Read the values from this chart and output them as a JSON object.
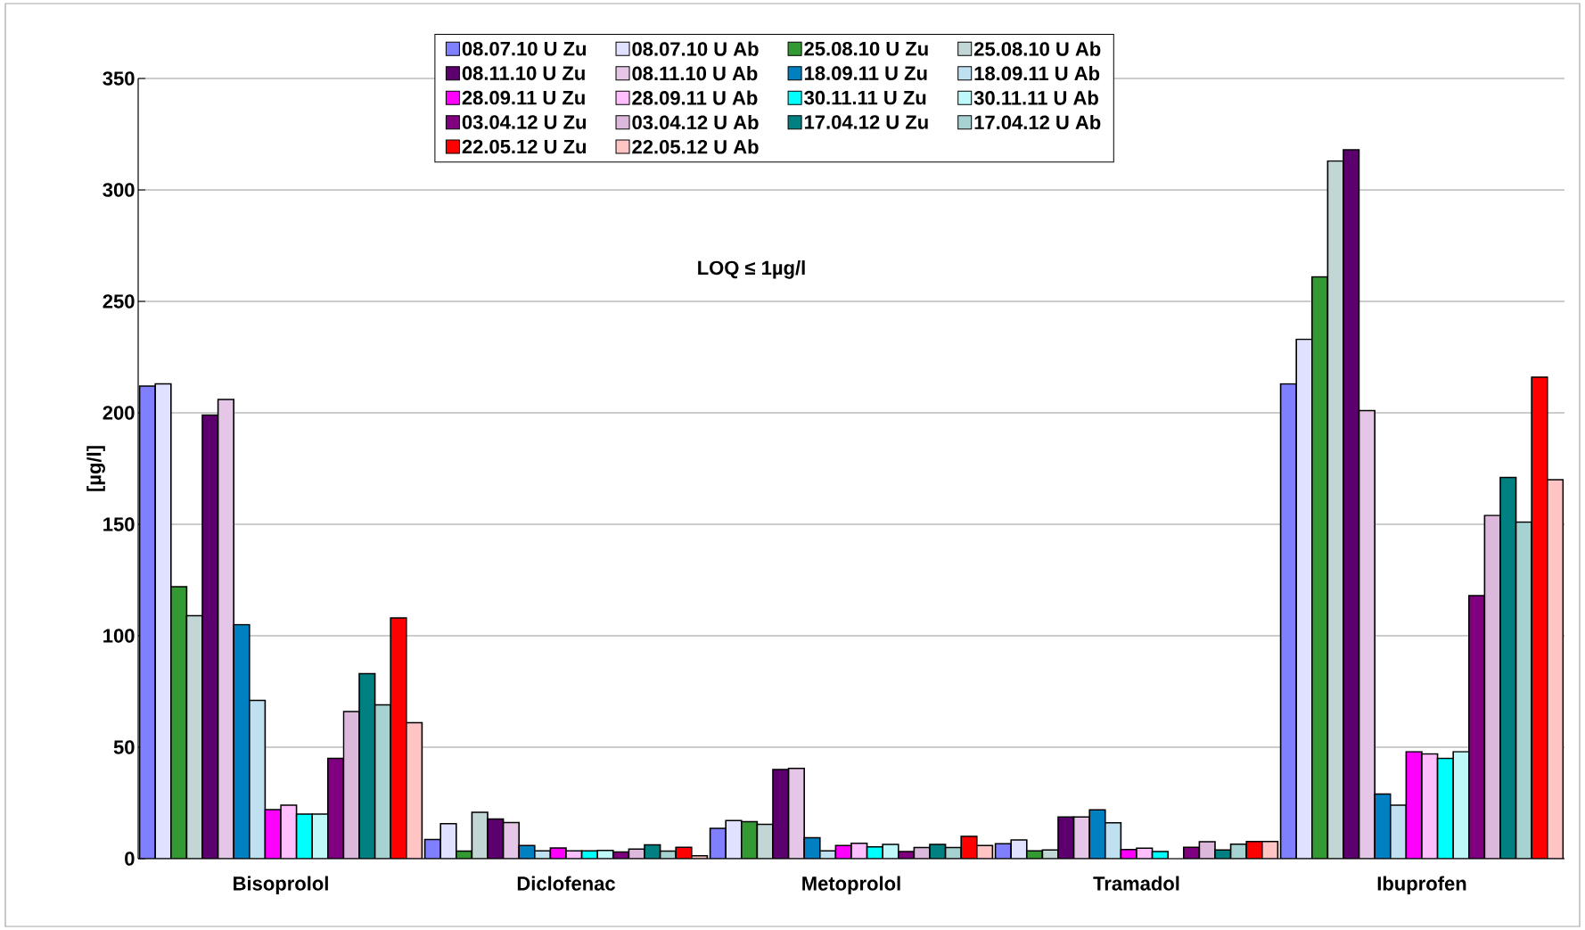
{
  "chart_data": {
    "type": "bar",
    "ylabel": "[µg/l]",
    "annotations": [
      "LOQ ≤ 1µg/l"
    ],
    "categories": [
      "Bisoprolol",
      "Diclofenac",
      "Metoprolol",
      "Tramadol",
      "Ibuprofen"
    ],
    "ylim": [
      0,
      350
    ],
    "yticks": [
      0,
      50,
      100,
      150,
      200,
      250,
      300,
      350
    ],
    "grid": "y",
    "legend": "top",
    "series": [
      {
        "name": "08.07.10 U Zu",
        "color": "#8080ff",
        "values": [
          212,
          8.6,
          13.6,
          6.7,
          213
        ]
      },
      {
        "name": "08.07.10 U Ab",
        "color": "#e0e0ff",
        "values": [
          213,
          15.7,
          17.1,
          8.4,
          233
        ]
      },
      {
        "name": "25.08.10 U Zu",
        "color": "#339933",
        "values": [
          122,
          3.4,
          16.6,
          3.5,
          261
        ]
      },
      {
        "name": "25.08.10 U Ab",
        "color": "#c2d6d6",
        "values": [
          109,
          20.8,
          15.4,
          3.9,
          313
        ]
      },
      {
        "name": "08.11.10 U Zu",
        "color": "#5c006e",
        "values": [
          199,
          17.8,
          40,
          18.7,
          318
        ]
      },
      {
        "name": "08.11.10 U Ab",
        "color": "#e6c6e6",
        "values": [
          206,
          16.2,
          40.5,
          18.7,
          201
        ]
      },
      {
        "name": "18.09.11 U Zu",
        "color": "#0080c0",
        "values": [
          105,
          5.9,
          9.4,
          21.9,
          29
        ]
      },
      {
        "name": "18.09.11 U Ab",
        "color": "#bfe0f0",
        "values": [
          71,
          3.5,
          3.5,
          16.1,
          24
        ]
      },
      {
        "name": "28.09.11 U Zu",
        "color": "#ff00ff",
        "values": [
          22,
          4.8,
          5.9,
          4.1,
          48
        ]
      },
      {
        "name": "28.09.11 U Ab",
        "color": "#ffbfff",
        "values": [
          24,
          3.5,
          6.9,
          4.7,
          47
        ]
      },
      {
        "name": "30.11.11 U Zu",
        "color": "#00ffff",
        "values": [
          20,
          3.5,
          5.3,
          3.2,
          45
        ]
      },
      {
        "name": "30.11.11 U Ab",
        "color": "#bff8f8",
        "values": [
          20,
          3.7,
          6.4,
          null,
          48
        ]
      },
      {
        "name": "03.04.12 U Zu",
        "color": "#800080",
        "values": [
          45,
          3,
          3.2,
          5.1,
          118
        ]
      },
      {
        "name": "03.04.12 U Ab",
        "color": "#dcb8dc",
        "values": [
          66,
          4.3,
          5,
          7.6,
          154
        ]
      },
      {
        "name": "17.04.12 U Zu",
        "color": "#008080",
        "values": [
          83,
          6.2,
          6.4,
          3.9,
          171
        ]
      },
      {
        "name": "17.04.12 U Ab",
        "color": "#a6d2d2",
        "values": [
          69,
          3.4,
          5,
          6.5,
          151
        ]
      },
      {
        "name": "22.05.12 U Zu",
        "color": "#ff0000",
        "values": [
          108,
          5.1,
          10,
          7.7,
          216
        ]
      },
      {
        "name": "22.05.12 U Ab",
        "color": "#ffc4c4",
        "values": [
          61,
          1.3,
          5.9,
          7.7,
          170
        ]
      }
    ]
  }
}
